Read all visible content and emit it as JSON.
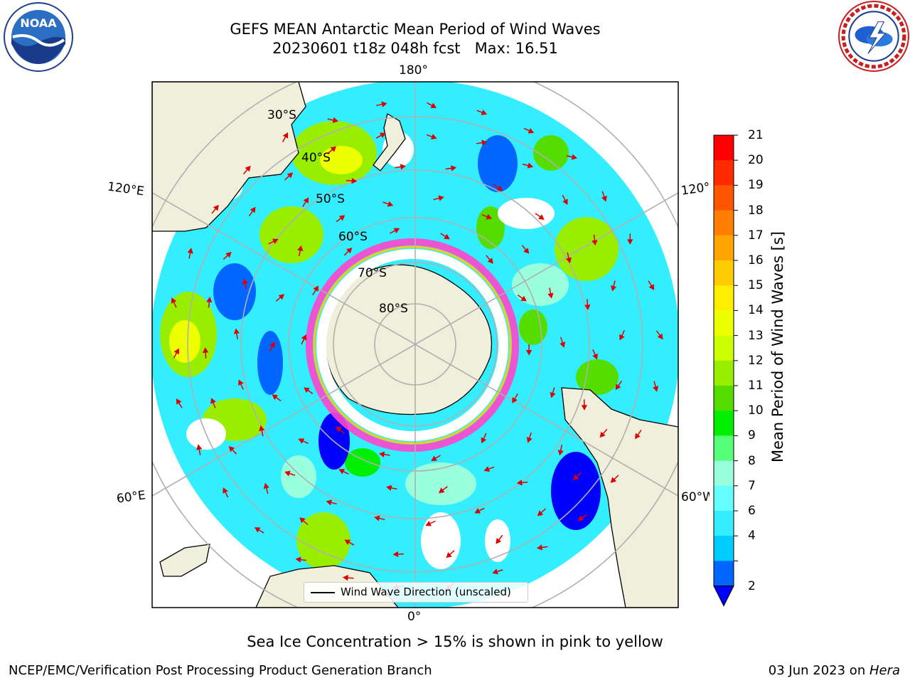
{
  "title": {
    "line1": "GEFS MEAN Antarctic Mean Period of Wind Waves",
    "line2": "20230601 t18z 048h fcst   Max: 16.51"
  },
  "logos": {
    "left": "noaa-logo",
    "left_text": "NOAA",
    "left_ring_text": "NATIONAL OCEANIC AND ATMOSPHERIC ADMINISTRATION · U.S. DEPARTMENT OF COMMERCE",
    "right": "nws-logo",
    "right_ring_text": "NATIONAL WEATHER SERVICE"
  },
  "map": {
    "projection": "south-polar-stereographic",
    "meridian_labels": [
      "180°",
      "120°E",
      "120°",
      "60°E",
      "60°W",
      "0°"
    ],
    "latitude_labels": [
      "30°S",
      "40°S",
      "50°S",
      "60°S",
      "70°S",
      "80°S"
    ],
    "legend": "Wind Wave Direction (unscaled)"
  },
  "colorbar": {
    "label": "Mean Period of Wind Waves [s]",
    "ticks": [
      "21",
      "20",
      "19",
      "18",
      "17",
      "16",
      "15",
      "14",
      "13",
      "12",
      "11",
      "10",
      "9",
      "8",
      "7",
      "6",
      "4",
      "2"
    ],
    "tick_values": [
      21,
      20,
      19,
      18,
      17,
      16,
      15,
      14,
      13,
      12,
      11,
      10,
      9,
      8,
      7,
      6,
      4,
      2
    ],
    "colors": [
      "#ff0000",
      "#ff2a00",
      "#ff5500",
      "#ff7f00",
      "#ffa500",
      "#ffcc00",
      "#ffee00",
      "#eeff00",
      "#ccff00",
      "#99ee00",
      "#55dd00",
      "#00ee00",
      "#55ff77",
      "#99ffdd",
      "#66ffff",
      "#33eeff",
      "#00ccff",
      "#0066ff"
    ],
    "extend_color": "#0000ff"
  },
  "footnote": "Sea Ice Concentration > 15% is shown in pink to yellow",
  "credit": "NCEP/EMC/Verification Post Processing Product Generation Branch",
  "date": {
    "text": "03 Jun 2023 on ",
    "machine": "Hera"
  }
}
